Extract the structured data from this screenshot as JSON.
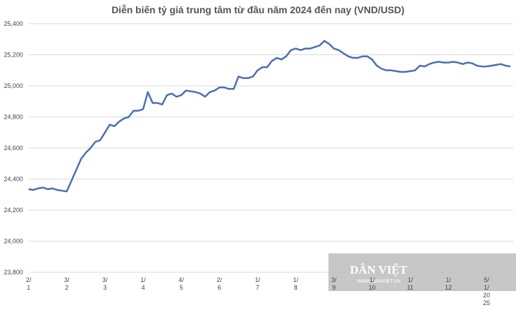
{
  "chart_data": {
    "type": "line",
    "title": "Diễn biến tỷ giá trung tâm từ đầu năm 2024 đến nay (VND/USD)",
    "watermark": "DÂN VIỆT",
    "watermark_url": "WWW.DANVIET.VN",
    "categories": [
      "2/1",
      null,
      null,
      null,
      null,
      null,
      null,
      null,
      "3/2",
      null,
      null,
      null,
      null,
      null,
      null,
      null,
      "3/3",
      null,
      null,
      null,
      null,
      null,
      null,
      null,
      "1/4",
      null,
      null,
      null,
      null,
      null,
      null,
      null,
      "4/5",
      null,
      null,
      null,
      null,
      null,
      null,
      null,
      "2/6",
      null,
      null,
      null,
      null,
      null,
      null,
      null,
      "1/7",
      null,
      null,
      null,
      null,
      null,
      null,
      null,
      "1/8",
      null,
      null,
      null,
      null,
      null,
      null,
      null,
      "3/9",
      null,
      null,
      null,
      null,
      null,
      null,
      null,
      "1/10",
      null,
      null,
      null,
      null,
      null,
      null,
      null,
      "1/11",
      null,
      null,
      null,
      null,
      null,
      null,
      null,
      "1/12",
      null,
      null,
      null,
      null,
      null,
      null,
      null,
      "5/1/2025",
      null,
      null,
      null,
      null,
      null
    ],
    "series": [
      {
        "color": "#4a6fb0",
        "values": [
          24335,
          24330,
          24340,
          24345,
          24335,
          24340,
          24330,
          24325,
          24320,
          24390,
          24460,
          24530,
          24570,
          24600,
          24640,
          24650,
          24700,
          24750,
          24740,
          24770,
          24790,
          24800,
          24840,
          24840,
          24850,
          24960,
          24890,
          24890,
          24880,
          24940,
          24950,
          24930,
          24940,
          24970,
          24965,
          24960,
          24950,
          24930,
          24960,
          24970,
          24990,
          24990,
          24980,
          24980,
          25060,
          25050,
          25050,
          25060,
          25100,
          25120,
          25120,
          25160,
          25180,
          25170,
          25190,
          25230,
          25240,
          25230,
          25240,
          25240,
          25250,
          25260,
          25290,
          25270,
          25240,
          25230,
          25210,
          25190,
          25180,
          25180,
          25190,
          25190,
          25170,
          25130,
          25110,
          25100,
          25100,
          25095,
          25090,
          25090,
          25095,
          25100,
          25130,
          25125,
          25140,
          25150,
          25155,
          25150,
          25150,
          25155,
          25150,
          25140,
          25150,
          25145,
          25130,
          25125,
          25125,
          25130,
          25135,
          25140,
          25130,
          25125
        ]
      }
    ],
    "ylim": [
      23800,
      25400
    ],
    "yticks": [
      {
        "value": 23800,
        "label": "23,800"
      },
      {
        "value": 24000,
        "label": "24,000"
      },
      {
        "value": 24200,
        "label": "24,200"
      },
      {
        "value": 24400,
        "label": "24,400"
      },
      {
        "value": 24600,
        "label": "24,600"
      },
      {
        "value": 24800,
        "label": "24,800"
      },
      {
        "value": 25000,
        "label": "25,000"
      },
      {
        "value": 25200,
        "label": "25,200"
      },
      {
        "value": 25400,
        "label": "25,400"
      }
    ],
    "grid": true
  }
}
